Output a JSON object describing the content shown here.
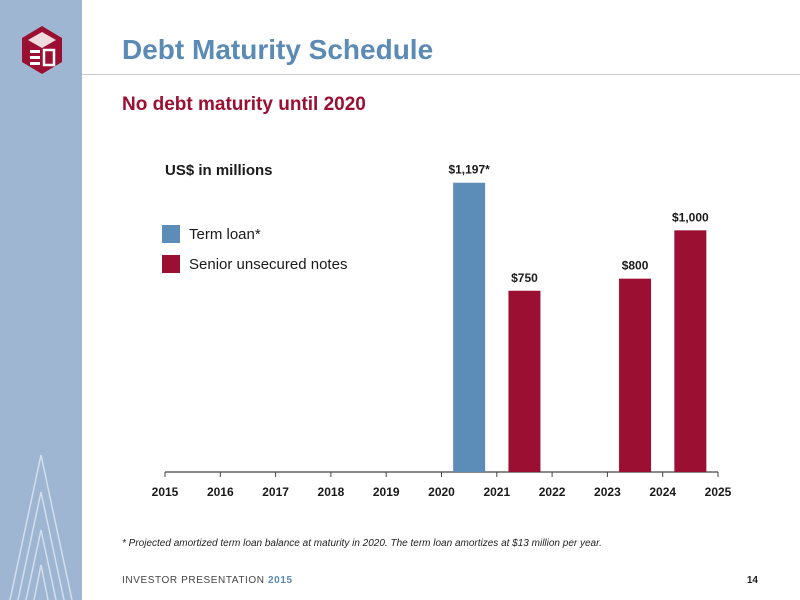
{
  "header": {
    "title": "Debt Maturity Schedule",
    "subtitle": "No debt maturity until 2020"
  },
  "colors": {
    "term_loan": "#5b8db8",
    "senior_notes": "#9b0f32",
    "title": "#5b8bb4",
    "subtitle": "#9b0f32",
    "sidebar": "#9fb6d3"
  },
  "chart_data": {
    "type": "bar",
    "units_label": "US$ in millions",
    "categories": [
      "2015",
      "2016",
      "2017",
      "2018",
      "2019",
      "2020",
      "2021",
      "2022",
      "2023",
      "2024",
      "2025"
    ],
    "series": [
      {
        "name": "Term loan*",
        "color": "#5b8db8",
        "values": [
          null,
          null,
          null,
          null,
          null,
          1197,
          null,
          null,
          null,
          null,
          null
        ]
      },
      {
        "name": "Senior unsecured notes",
        "color": "#9b0f32",
        "values": [
          null,
          null,
          null,
          null,
          null,
          null,
          750,
          null,
          800,
          1000,
          null
        ]
      }
    ],
    "data_labels": [
      {
        "category": "2020",
        "text": "$1,197*"
      },
      {
        "category": "2021",
        "text": "$750"
      },
      {
        "category": "2023",
        "text": "$800"
      },
      {
        "category": "2024",
        "text": "$1,000"
      }
    ],
    "ylim": [
      0,
      1200
    ],
    "grid": false,
    "legend_position": "top-left"
  },
  "footnote": "* Projected amortized term loan balance at maturity in 2020. The term loan amortizes at $13 million per year.",
  "footer": {
    "label": "INVESTOR PRESENTATION",
    "year": "2015",
    "page": "14"
  }
}
